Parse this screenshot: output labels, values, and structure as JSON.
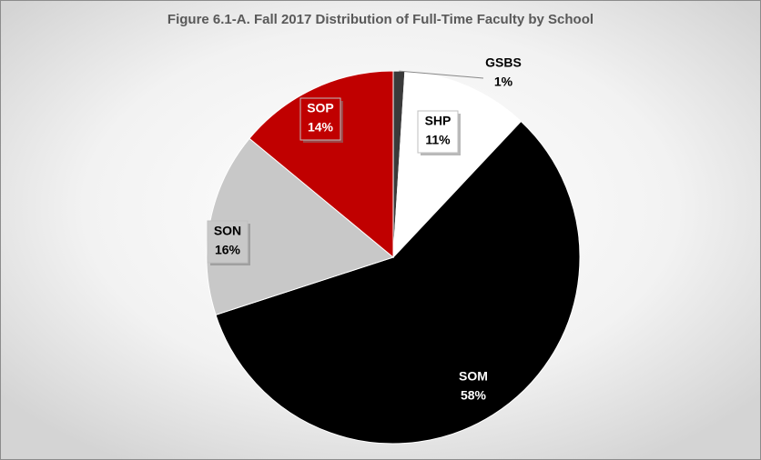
{
  "chart_data": {
    "type": "pie",
    "title": "Figure 6.1-A.  Fall 2017 Distribution of Full-Time Faculty by School",
    "categories": [
      "GSBS",
      "SHP",
      "SOM",
      "SON",
      "SOP"
    ],
    "values": [
      1,
      11,
      58,
      16,
      14
    ],
    "value_labels": [
      "1%",
      "11%",
      "58%",
      "16%",
      "14%"
    ],
    "colors": [
      "#3a3a3a",
      "#ffffff",
      "#000000",
      "#c8c8c8",
      "#c00000"
    ]
  }
}
